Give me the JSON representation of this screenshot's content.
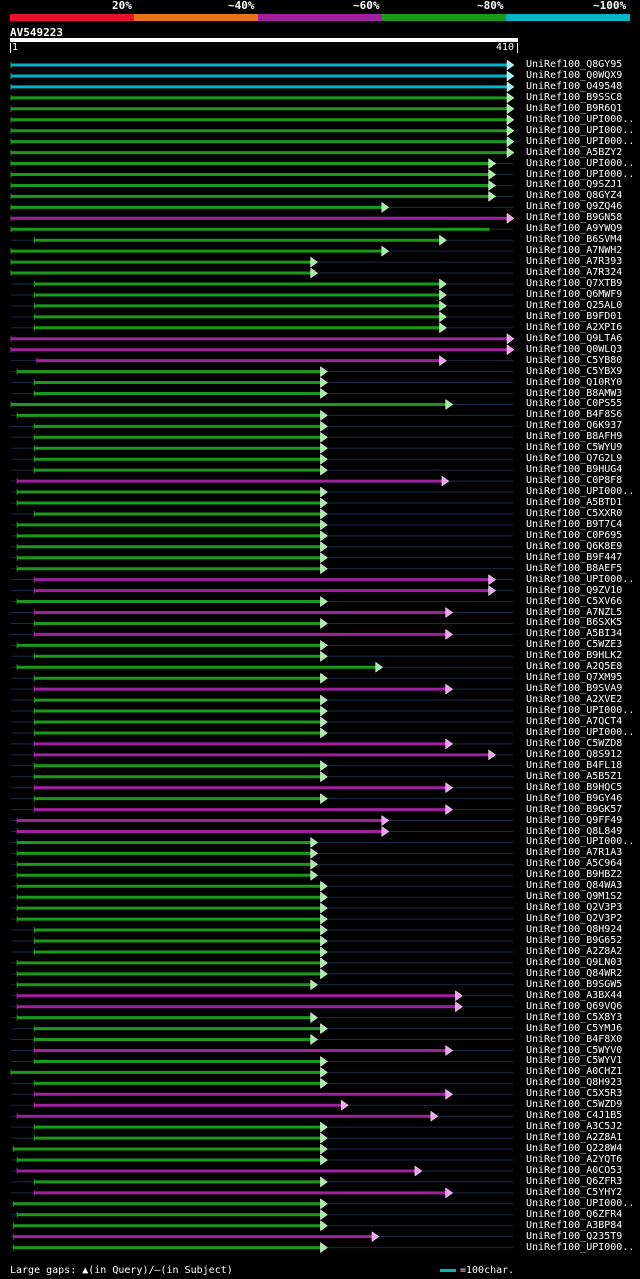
{
  "legend": {
    "labels": [
      "20%",
      "~40%",
      "~60%",
      "~80%",
      "~100%"
    ],
    "colors": [
      "#e8132b",
      "#e8731b",
      "#a020a0",
      "#1a9a1a",
      "#00b4c8"
    ]
  },
  "query": {
    "name": "AV549223",
    "start": "1",
    "end": "410"
  },
  "footer": {
    "gaps": "Large gaps: ▲(in Query)/—(in Subject)",
    "scale": "=100char."
  },
  "hits": [
    {
      "id": "UniRef100_Q8GY95",
      "c": "#00b4c8",
      "s": 1,
      "e": 410,
      "a": 1
    },
    {
      "id": "UniRef100_Q0WQX9",
      "c": "#00b4c8",
      "s": 1,
      "e": 410,
      "a": 1
    },
    {
      "id": "UniRef100_O49548",
      "c": "#00b4c8",
      "s": 1,
      "e": 410,
      "a": 1
    },
    {
      "id": "UniRef100_B9SSC8",
      "c": "#1a9a1a",
      "s": 1,
      "e": 410,
      "a": 1
    },
    {
      "id": "UniRef100_B9R6Q1",
      "c": "#1a9a1a",
      "s": 1,
      "e": 410,
      "a": 1
    },
    {
      "id": "UniRef100_UPI000..",
      "c": "#1a9a1a",
      "s": 1,
      "e": 410,
      "a": 1
    },
    {
      "id": "UniRef100_UPI000..",
      "c": "#1a9a1a",
      "s": 1,
      "e": 410,
      "a": 1
    },
    {
      "id": "UniRef100_UPI000..",
      "c": "#1a9a1a",
      "s": 1,
      "e": 410,
      "a": 1
    },
    {
      "id": "UniRef100_A5BZY2",
      "c": "#1a9a1a",
      "s": 1,
      "e": 410,
      "a": 1
    },
    {
      "id": "UniRef100_UPI000..",
      "c": "#1a9a1a",
      "s": 1,
      "e": 395,
      "a": 1
    },
    {
      "id": "UniRef100_UPI000..",
      "c": "#1a9a1a",
      "s": 1,
      "e": 395,
      "a": 1
    },
    {
      "id": "UniRef100_Q9SZJ1",
      "c": "#1a9a1a",
      "s": 1,
      "e": 395,
      "a": 1
    },
    {
      "id": "UniRef100_Q8GYZ4",
      "c": "#1a9a1a",
      "s": 1,
      "e": 395,
      "a": 1
    },
    {
      "id": "UniRef100_Q9ZQ46",
      "c": "#1a9a1a",
      "s": 1,
      "e": 308,
      "a": 1
    },
    {
      "id": "UniRef100_B9GN58",
      "c": "#a020a0",
      "s": 1,
      "e": 410,
      "a": 1
    },
    {
      "id": "UniRef100_A9YWQ9",
      "c": "#1a9a1a",
      "s": 1,
      "e": 395,
      "a": 0
    },
    {
      "id": "UniRef100_B6SVM4",
      "c": "#1a9a1a",
      "s": 20,
      "e": 355,
      "a": 1
    },
    {
      "id": "UniRef100_A7NWH2",
      "c": "#1a9a1a",
      "s": 1,
      "e": 308,
      "a": 1
    },
    {
      "id": "UniRef100_A7R393",
      "c": "#1a9a1a",
      "s": 1,
      "e": 250,
      "a": 1
    },
    {
      "id": "UniRef100_A7R324",
      "c": "#1a9a1a",
      "s": 1,
      "e": 250,
      "a": 1
    },
    {
      "id": "UniRef100_Q7XTB9",
      "c": "#1a9a1a",
      "s": 20,
      "e": 355,
      "a": 1
    },
    {
      "id": "UniRef100_Q6MWF9",
      "c": "#1a9a1a",
      "s": 20,
      "e": 355,
      "a": 1
    },
    {
      "id": "UniRef100_Q25AL0",
      "c": "#1a9a1a",
      "s": 20,
      "e": 355,
      "a": 1
    },
    {
      "id": "UniRef100_B9FD01",
      "c": "#1a9a1a",
      "s": 20,
      "e": 355,
      "a": 1
    },
    {
      "id": "UniRef100_A2XPI6",
      "c": "#1a9a1a",
      "s": 20,
      "e": 355,
      "a": 1
    },
    {
      "id": "UniRef100_Q9LTA6",
      "c": "#a020a0",
      "s": 1,
      "e": 410,
      "a": 1
    },
    {
      "id": "UniRef100_Q0WLQ3",
      "c": "#a020a0",
      "s": 1,
      "e": 410,
      "a": 1
    },
    {
      "id": "UniRef100_C5YB80",
      "c": "#a020a0",
      "s": 22,
      "e": 355,
      "a": 1
    },
    {
      "id": "UniRef100_C5YBX9",
      "c": "#1a9a1a",
      "s": 6,
      "e": 258,
      "a": 1
    },
    {
      "id": "UniRef100_Q10RY0",
      "c": "#1a9a1a",
      "s": 20,
      "e": 258,
      "a": 1
    },
    {
      "id": "UniRef100_B8AMW3",
      "c": "#1a9a1a",
      "s": 20,
      "e": 258,
      "a": 1
    },
    {
      "id": "UniRef100_C0PS55",
      "c": "#1a9a1a",
      "s": 1,
      "e": 360,
      "a": 1
    },
    {
      "id": "UniRef100_B4F8S6",
      "c": "#1a9a1a",
      "s": 6,
      "e": 258,
      "a": 1
    },
    {
      "id": "UniRef100_Q6K937",
      "c": "#1a9a1a",
      "s": 20,
      "e": 258,
      "a": 1
    },
    {
      "id": "UniRef100_B8AFH9",
      "c": "#1a9a1a",
      "s": 20,
      "e": 258,
      "a": 1
    },
    {
      "id": "UniRef100_C5WYU9",
      "c": "#1a9a1a",
      "s": 20,
      "e": 258,
      "a": 1
    },
    {
      "id": "UniRef100_Q7G2L9",
      "c": "#1a9a1a",
      "s": 20,
      "e": 258,
      "a": 1
    },
    {
      "id": "UniRef100_B9HUG4",
      "c": "#1a9a1a",
      "s": 20,
      "e": 258,
      "a": 1
    },
    {
      "id": "UniRef100_C0P8F8",
      "c": "#a020a0",
      "s": 6,
      "e": 357,
      "a": 1
    },
    {
      "id": "UniRef100_UPI000..",
      "c": "#1a9a1a",
      "s": 6,
      "e": 258,
      "a": 1
    },
    {
      "id": "UniRef100_A5BTD1",
      "c": "#1a9a1a",
      "s": 6,
      "e": 258,
      "a": 1
    },
    {
      "id": "UniRef100_C5XXR0",
      "c": "#1a9a1a",
      "s": 20,
      "e": 258,
      "a": 1
    },
    {
      "id": "UniRef100_B9T7C4",
      "c": "#1a9a1a",
      "s": 6,
      "e": 258,
      "a": 1
    },
    {
      "id": "UniRef100_C0P695",
      "c": "#1a9a1a",
      "s": 6,
      "e": 258,
      "a": 1
    },
    {
      "id": "UniRef100_Q6K8E9",
      "c": "#1a9a1a",
      "s": 6,
      "e": 258,
      "a": 1
    },
    {
      "id": "UniRef100_B9F447",
      "c": "#1a9a1a",
      "s": 6,
      "e": 258,
      "a": 1
    },
    {
      "id": "UniRef100_B8AEF5",
      "c": "#1a9a1a",
      "s": 6,
      "e": 258,
      "a": 1
    },
    {
      "id": "UniRef100_UPI000..",
      "c": "#a020a0",
      "s": 20,
      "e": 395,
      "a": 1
    },
    {
      "id": "UniRef100_Q9ZV10",
      "c": "#a020a0",
      "s": 20,
      "e": 395,
      "a": 1
    },
    {
      "id": "UniRef100_C5XV66",
      "c": "#1a9a1a",
      "s": 6,
      "e": 258,
      "a": 1
    },
    {
      "id": "UniRef100_A7NZL5",
      "c": "#a020a0",
      "s": 20,
      "e": 360,
      "a": 1
    },
    {
      "id": "UniRef100_B6SXK5",
      "c": "#1a9a1a",
      "s": 20,
      "e": 258,
      "a": 1
    },
    {
      "id": "UniRef100_A5BI34",
      "c": "#a020a0",
      "s": 20,
      "e": 360,
      "a": 1
    },
    {
      "id": "UniRef100_C5WZE3",
      "c": "#1a9a1a",
      "s": 6,
      "e": 258,
      "a": 1
    },
    {
      "id": "UniRef100_B9HLK2",
      "c": "#1a9a1a",
      "s": 20,
      "e": 258,
      "a": 1
    },
    {
      "id": "UniRef100_A2Q5E8",
      "c": "#1a9a1a",
      "s": 6,
      "e": 303,
      "a": 1
    },
    {
      "id": "UniRef100_Q7XM95",
      "c": "#1a9a1a",
      "s": 20,
      "e": 258,
      "a": 1
    },
    {
      "id": "UniRef100_B9SVA9",
      "c": "#a020a0",
      "s": 20,
      "e": 360,
      "a": 1
    },
    {
      "id": "UniRef100_A2XVE2",
      "c": "#1a9a1a",
      "s": 20,
      "e": 258,
      "a": 1
    },
    {
      "id": "UniRef100_UPI000..",
      "c": "#1a9a1a",
      "s": 20,
      "e": 258,
      "a": 1
    },
    {
      "id": "UniRef100_A7QCT4",
      "c": "#1a9a1a",
      "s": 20,
      "e": 258,
      "a": 1
    },
    {
      "id": "UniRef100_UPI000..",
      "c": "#1a9a1a",
      "s": 20,
      "e": 258,
      "a": 1
    },
    {
      "id": "UniRef100_C5WZD8",
      "c": "#a020a0",
      "s": 20,
      "e": 360,
      "a": 1
    },
    {
      "id": "UniRef100_Q8S912",
      "c": "#a020a0",
      "s": 20,
      "e": 395,
      "a": 1
    },
    {
      "id": "UniRef100_B4FL18",
      "c": "#1a9a1a",
      "s": 20,
      "e": 258,
      "a": 1
    },
    {
      "id": "UniRef100_A5B5Z1",
      "c": "#1a9a1a",
      "s": 20,
      "e": 258,
      "a": 1
    },
    {
      "id": "UniRef100_B9HQC5",
      "c": "#a020a0",
      "s": 20,
      "e": 360,
      "a": 1
    },
    {
      "id": "UniRef100_B9GY46",
      "c": "#1a9a1a",
      "s": 20,
      "e": 258,
      "a": 1
    },
    {
      "id": "UniRef100_B9GK57",
      "c": "#a020a0",
      "s": 20,
      "e": 360,
      "a": 1
    },
    {
      "id": "UniRef100_Q9FF49",
      "c": "#a020a0",
      "s": 6,
      "e": 308,
      "a": 1
    },
    {
      "id": "UniRef100_Q8L849",
      "c": "#a020a0",
      "s": 6,
      "e": 308,
      "a": 1
    },
    {
      "id": "UniRef100_UPI000..",
      "c": "#1a9a1a",
      "s": 6,
      "e": 250,
      "a": 1
    },
    {
      "id": "UniRef100_A7R1A3",
      "c": "#1a9a1a",
      "s": 6,
      "e": 250,
      "a": 1
    },
    {
      "id": "UniRef100_A5C964",
      "c": "#1a9a1a",
      "s": 6,
      "e": 250,
      "a": 1
    },
    {
      "id": "UniRef100_B9HBZ2",
      "c": "#1a9a1a",
      "s": 6,
      "e": 250,
      "a": 1
    },
    {
      "id": "UniRef100_Q84WA3",
      "c": "#1a9a1a",
      "s": 6,
      "e": 258,
      "a": 1
    },
    {
      "id": "UniRef100_Q9M1S2",
      "c": "#1a9a1a",
      "s": 6,
      "e": 258,
      "a": 1
    },
    {
      "id": "UniRef100_Q2V3P3",
      "c": "#1a9a1a",
      "s": 6,
      "e": 258,
      "a": 1
    },
    {
      "id": "UniRef100_Q2V3P2",
      "c": "#1a9a1a",
      "s": 6,
      "e": 258,
      "a": 1
    },
    {
      "id": "UniRef100_Q8H924",
      "c": "#1a9a1a",
      "s": 20,
      "e": 258,
      "a": 1
    },
    {
      "id": "UniRef100_B9G652",
      "c": "#1a9a1a",
      "s": 20,
      "e": 258,
      "a": 1
    },
    {
      "id": "UniRef100_A2Z8A2",
      "c": "#1a9a1a",
      "s": 20,
      "e": 258,
      "a": 1
    },
    {
      "id": "UniRef100_Q9LN03",
      "c": "#1a9a1a",
      "s": 6,
      "e": 258,
      "a": 1
    },
    {
      "id": "UniRef100_Q84WR2",
      "c": "#1a9a1a",
      "s": 6,
      "e": 258,
      "a": 1
    },
    {
      "id": "UniRef100_B9SGW5",
      "c": "#1a9a1a",
      "s": 6,
      "e": 250,
      "a": 1
    },
    {
      "id": "UniRef100_A3BX44",
      "c": "#a020a0",
      "s": 6,
      "e": 368,
      "a": 1
    },
    {
      "id": "UniRef100_Q69VQ6",
      "c": "#a020a0",
      "s": 6,
      "e": 368,
      "a": 1
    },
    {
      "id": "UniRef100_C5X8Y3",
      "c": "#1a9a1a",
      "s": 6,
      "e": 250,
      "a": 1
    },
    {
      "id": "UniRef100_C5YMJ6",
      "c": "#1a9a1a",
      "s": 20,
      "e": 258,
      "a": 1
    },
    {
      "id": "UniRef100_B4F8X0",
      "c": "#1a9a1a",
      "s": 20,
      "e": 250,
      "a": 1
    },
    {
      "id": "UniRef100_C5WYV0",
      "c": "#a020a0",
      "s": 20,
      "e": 360,
      "a": 1
    },
    {
      "id": "UniRef100_C5WYV1",
      "c": "#1a9a1a",
      "s": 20,
      "e": 258,
      "a": 1
    },
    {
      "id": "UniRef100_A0CHZ1",
      "c": "#1a9a1a",
      "s": 1,
      "e": 258,
      "a": 1
    },
    {
      "id": "UniRef100_Q8H923",
      "c": "#1a9a1a",
      "s": 20,
      "e": 258,
      "a": 1
    },
    {
      "id": "UniRef100_C5X5R3",
      "c": "#a020a0",
      "s": 20,
      "e": 360,
      "a": 1
    },
    {
      "id": "UniRef100_C5WZD9",
      "c": "#a020a0",
      "s": 20,
      "e": 275,
      "a": 1
    },
    {
      "id": "UniRef100_C4J1B5",
      "c": "#a020a0",
      "s": 6,
      "e": 348,
      "a": 1
    },
    {
      "id": "UniRef100_A3C5J2",
      "c": "#1a9a1a",
      "s": 20,
      "e": 258,
      "a": 1
    },
    {
      "id": "UniRef100_A2Z8A1",
      "c": "#1a9a1a",
      "s": 20,
      "e": 258,
      "a": 1
    },
    {
      "id": "UniRef100_Q228W4",
      "c": "#1a9a1a",
      "s": 3,
      "e": 258,
      "a": 1
    },
    {
      "id": "UniRef100_A2YQT6",
      "c": "#1a9a1a",
      "s": 6,
      "e": 258,
      "a": 1
    },
    {
      "id": "UniRef100_A0CO53",
      "c": "#a020a0",
      "s": 6,
      "e": 335,
      "a": 1
    },
    {
      "id": "UniRef100_Q6ZFR3",
      "c": "#1a9a1a",
      "s": 20,
      "e": 258,
      "a": 1
    },
    {
      "id": "UniRef100_C5YHY2",
      "c": "#a020a0",
      "s": 20,
      "e": 360,
      "a": 1
    },
    {
      "id": "UniRef100_UPI000..",
      "c": "#1a9a1a",
      "s": 3,
      "e": 258,
      "a": 1
    },
    {
      "id": "UniRef100_Q6ZFR4",
      "c": "#1a9a1a",
      "s": 6,
      "e": 258,
      "a": 1
    },
    {
      "id": "UniRef100_A3BP84",
      "c": "#1a9a1a",
      "s": 3,
      "e": 258,
      "a": 1
    },
    {
      "id": "UniRef100_Q235T9",
      "c": "#a020a0",
      "s": 3,
      "e": 300,
      "a": 1
    },
    {
      "id": "UniRef100_UPI000..",
      "c": "#1a9a1a",
      "s": 3,
      "e": 258,
      "a": 1
    }
  ]
}
